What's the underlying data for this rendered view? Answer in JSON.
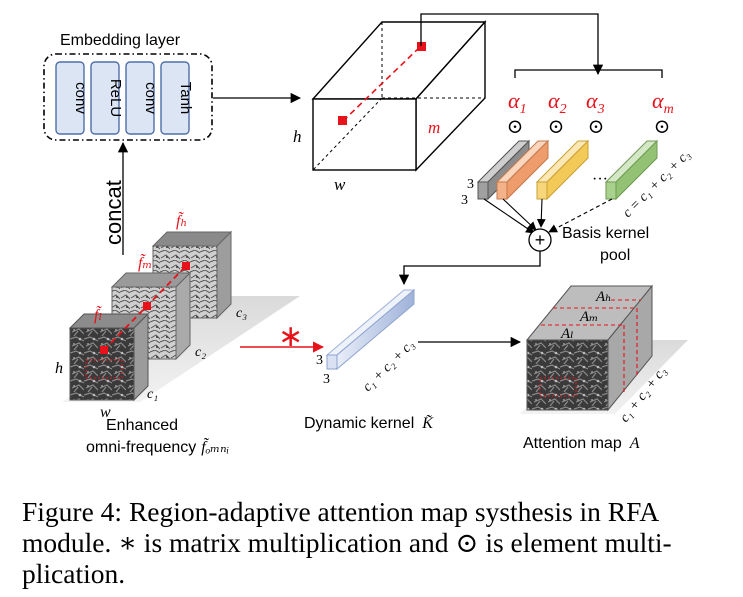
{
  "embedding": {
    "title": "Embedding layer",
    "layers": [
      "conv",
      "ReLU",
      "conv",
      "Tanh"
    ]
  },
  "concat_label": "concat",
  "volume": {
    "h": "h",
    "w": "w",
    "m": "m"
  },
  "alphas": [
    {
      "base": "α",
      "sub": "1"
    },
    {
      "base": "α",
      "sub": "2"
    },
    {
      "base": "α",
      "sub": "3"
    },
    {
      "base": "α",
      "sub": "m"
    }
  ],
  "odot": "⊙",
  "kernel_pool": {
    "size_a": "3",
    "size_b": "3",
    "ellipsis": "···",
    "channel_label": "c = c₁ + c₂ + c₃",
    "label_line1": "Basis kernel",
    "label_line2": "pool",
    "colors": [
      "#a0a0a0",
      "#f4b28a",
      "#f7d67c",
      "#a9d18e"
    ]
  },
  "sum_symbol": "+",
  "features": {
    "labels": [
      "f̃ₕ",
      "f̃ₘ",
      "f̃ₗ"
    ],
    "channels": [
      "c₃",
      "c₂",
      "c₁"
    ],
    "h": "h",
    "w": "w",
    "caption_line1": "Enhanced",
    "caption_line2": "omni-frequency",
    "caption_math": "f̃ₒₘₙᵢ"
  },
  "multiply_symbol": "∗",
  "dynamic_kernel": {
    "size_a": "3",
    "size_b": "3",
    "channel_label": "c₁ + c₂ + c₃",
    "label": "Dynamic kernel",
    "label_math": "K̃"
  },
  "attention": {
    "layers": [
      "Aₕ",
      "Aₘ",
      "Aₗ"
    ],
    "channel_label": "c₁ + c₂ + c₃",
    "label": "Attention map",
    "label_math": "A"
  },
  "colors": {
    "accent": "#e8121b",
    "ink": "#000000"
  },
  "caption": {
    "line1": "Figure 4: Region-adaptive attention map systhesis in RFA",
    "line2": "module. ∗ is matrix multiplication and ⊙ is element multi-",
    "line3": "plication."
  }
}
